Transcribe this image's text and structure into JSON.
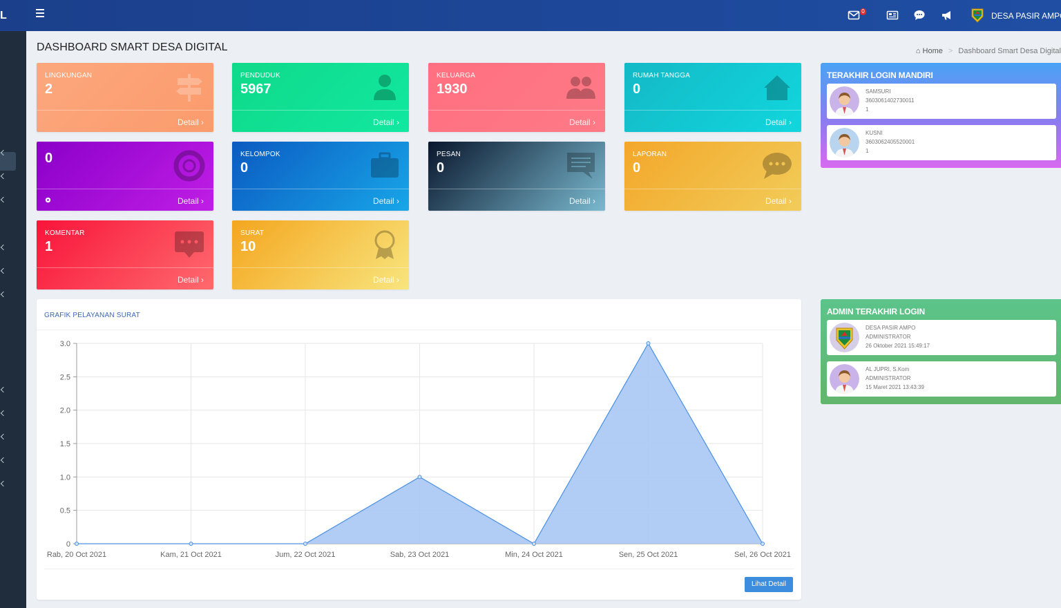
{
  "topbar": {
    "brand_stub": "L",
    "message_badge": "0",
    "village_name": "DESA PASIR AMPO",
    "icons": [
      "menu-icon",
      "envelope-icon",
      "newspaper-icon",
      "comment-icon",
      "bullhorn-icon",
      "village-logo-icon"
    ]
  },
  "page": {
    "title": "DASHBOARD SMART DESA DIGITAL",
    "breadcrumb": {
      "home": "Home",
      "current": "Dashboard Smart Desa Digital"
    }
  },
  "stats": {
    "lingkungan": {
      "label": "LINGKUNGAN",
      "value": "2",
      "detail": "Detail",
      "color_from": "#fca77e",
      "color_to": "#fb9b6c",
      "icon": "signpost-icon"
    },
    "penduduk": {
      "label": "PENDUDUK",
      "value": "5967",
      "detail": "Detail",
      "color_from": "#10d98a",
      "color_to": "#11e8a0",
      "icon": "user-icon"
    },
    "keluarga": {
      "label": "KELUARGA",
      "value": "1930",
      "detail": "Detail",
      "color_from": "#ff6f80",
      "color_to": "#fe7a86",
      "icon": "users-icon"
    },
    "rumah_tangga": {
      "label": "RUMAH TANGGA",
      "value": "0",
      "detail": "Detail",
      "color_from": "#13b9c6",
      "color_to": "#12d6dd",
      "icon": "home-icon"
    },
    "program": {
      "label": "",
      "value": "0",
      "detail": "Detail",
      "color_from": "#8b00c9",
      "color_to": "#c01ee6",
      "icon": "lifebuoy-icon"
    },
    "kelompok": {
      "label": "KELOMPOK",
      "value": "0",
      "detail": "Detail",
      "color_from": "#0b5ac1",
      "color_to": "#18a6e8",
      "icon": "briefcase-icon"
    },
    "pesan": {
      "label": "PESAN",
      "value": "0",
      "detail": "Detail",
      "color_from": "#09162c",
      "color_to": "#7ab9cf",
      "icon": "message-icon"
    },
    "laporan": {
      "label": "LAPORAN",
      "value": "0",
      "detail": "Detail",
      "color_from": "#f3a72a",
      "color_to": "#f2cc59",
      "icon": "chat-bubble-icon"
    },
    "komentar": {
      "label": "KOMENTAR",
      "value": "1",
      "detail": "Detail",
      "color_from": "#f9143a",
      "color_to": "#fe6a6e",
      "icon": "comment-dots-icon"
    },
    "surat": {
      "label": "SURAT",
      "value": "10",
      "detail": "Detail",
      "color_from": "#f4a61f",
      "color_to": "#f8e57e",
      "icon": "award-icon"
    }
  },
  "chart_panel": {
    "title": "GRAFIK PELAYANAN SURAT",
    "button": "Lihat Detail"
  },
  "chart_data": {
    "type": "area",
    "categories": [
      "Rab, 20 Oct 2021",
      "Kam, 21 Oct 2021",
      "Jum, 22 Oct 2021",
      "Sab, 23 Oct 2021",
      "Min, 24 Oct 2021",
      "Sen, 25 Oct 2021",
      "Sel, 26 Oct 2021"
    ],
    "values": [
      0,
      0,
      0,
      1,
      0,
      3,
      0
    ],
    "y_ticks": [
      "0",
      "0.5",
      "1.0",
      "1.5",
      "2.0",
      "2.5",
      "3.0"
    ],
    "ylim": [
      0,
      3
    ],
    "grid": true,
    "fill_color": "#a9c8f5",
    "line_color": "#4a90e2"
  },
  "login_mandiri": {
    "title": "TERAKHIR LOGIN MANDIRI",
    "users": [
      {
        "name": "SAMSURI",
        "nik": "3603061402730011",
        "extra": "1"
      },
      {
        "name": "KUSNI",
        "nik": "3603062405520001",
        "extra": "1"
      }
    ]
  },
  "admin_login": {
    "title": "ADMIN TERAKHIR LOGIN",
    "users": [
      {
        "name": "DESA PASIR AMPO",
        "role": "ADMINISTRATOR",
        "time": "26 Oktober 2021 15:49:17"
      },
      {
        "name": "AL JUPRI, S.Kom",
        "role": "ADMINISTRATOR",
        "time": "15 Maret 2021 13:43:39"
      }
    ]
  }
}
